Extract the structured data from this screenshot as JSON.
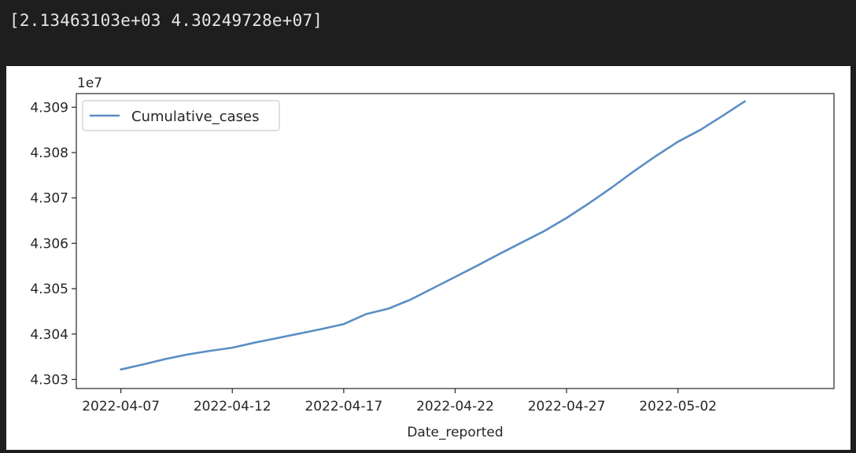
{
  "output": {
    "text": "[2.13463103e+03 4.30249728e+07]"
  },
  "colors": {
    "page_background": "#1e1e1e",
    "figure_background": "#ffffff",
    "series_line": "#5b8ec4",
    "text": "#262626"
  },
  "chart_data": {
    "type": "line",
    "title": "",
    "xlabel": "Date_reported",
    "ylabel": "",
    "y_offset_label": "1e7",
    "legend": {
      "placement": "upper-left",
      "entries": [
        "Cumulative_cases"
      ]
    },
    "grid": false,
    "x_tick_labels": [
      "2022-04-07",
      "2022-04-12",
      "2022-04-17",
      "2022-04-22",
      "2022-04-27",
      "2022-05-02"
    ],
    "y_tick_labels": [
      "4.303",
      "4.304",
      "4.305",
      "4.306",
      "4.307",
      "4.308",
      "4.309"
    ],
    "y_ticks": [
      43030000,
      43040000,
      43050000,
      43060000,
      43070000,
      43080000,
      43090000
    ],
    "xlim": [
      "2022-04-05",
      "2022-05-09"
    ],
    "ylim": [
      43028000,
      43093000
    ],
    "series": [
      {
        "name": "Cumulative_cases",
        "x": [
          "2022-04-07",
          "2022-04-08",
          "2022-04-09",
          "2022-04-10",
          "2022-04-11",
          "2022-04-12",
          "2022-04-13",
          "2022-04-14",
          "2022-04-15",
          "2022-04-16",
          "2022-04-17",
          "2022-04-18",
          "2022-04-19",
          "2022-04-20",
          "2022-04-21",
          "2022-04-22",
          "2022-04-23",
          "2022-04-24",
          "2022-04-25",
          "2022-04-26",
          "2022-04-27",
          "2022-04-28",
          "2022-04-29",
          "2022-04-30",
          "2022-05-01",
          "2022-05-02",
          "2022-05-03",
          "2022-05-04",
          "2022-05-05"
        ],
        "values": [
          43032200,
          43033300,
          43034500,
          43035500,
          43036300,
          43037000,
          43038100,
          43039100,
          43040100,
          43041100,
          43042200,
          43044400,
          43045600,
          43047600,
          43050100,
          43052600,
          43055100,
          43057700,
          43060200,
          43062700,
          43065600,
          43068800,
          43072200,
          43075800,
          43079200,
          43082400,
          43085000,
          43088100,
          43091300
        ]
      }
    ]
  }
}
